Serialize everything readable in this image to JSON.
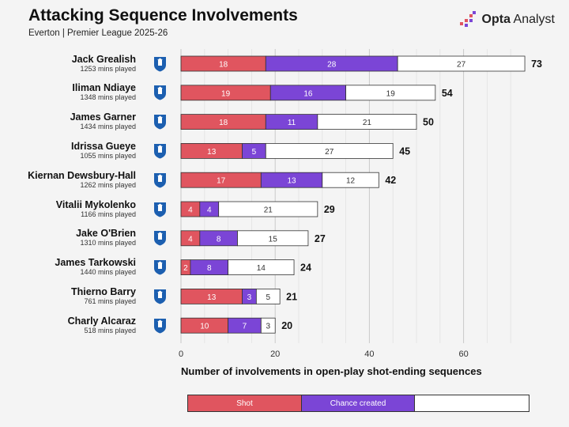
{
  "header": {
    "title": "Attacking Sequence Involvements",
    "subtitle": "Everton | Premier League 2025-26",
    "brand_bold": "Opta",
    "brand_regular": " Analyst"
  },
  "legend": {
    "shot": "Shot",
    "chance": "Chance created",
    "other": ""
  },
  "colors": {
    "shot": "#e0555f",
    "chance": "#7b45d6",
    "other": "#ffffff",
    "crest": "#1c5fb0"
  },
  "chart_data": {
    "type": "bar",
    "orientation": "horizontal",
    "stacked": true,
    "title": "Attacking Sequence Involvements",
    "xlabel": "Number of involvements in open-play shot-ending sequences",
    "xlim": [
      0,
      73
    ],
    "xticks": [
      0,
      20,
      40,
      60
    ],
    "grid": true,
    "categories": [
      "Jack Grealish",
      "Iliman Ndiaye",
      "James Garner",
      "Idrissa Gueye",
      "Kiernan Dewsbury-Hall",
      "Vitalii Mykolenko",
      "Jake O'Brien",
      "James Tarkowski",
      "Thierno Barry",
      "Charly Alcaraz"
    ],
    "minutes": [
      "1253 mins played",
      "1348 mins played",
      "1434 mins played",
      "1055 mins played",
      "1262 mins played",
      "1166 mins played",
      "1310 mins played",
      "1440 mins played",
      "761 mins played",
      "518 mins played"
    ],
    "series": [
      {
        "name": "Shot",
        "values": [
          18,
          19,
          18,
          13,
          17,
          4,
          4,
          2,
          13,
          10
        ]
      },
      {
        "name": "Chance created",
        "values": [
          28,
          16,
          11,
          5,
          13,
          4,
          8,
          8,
          3,
          7
        ]
      },
      {
        "values": [
          27,
          19,
          21,
          27,
          12,
          21,
          15,
          14,
          5,
          3
        ]
      }
    ],
    "totals": [
      73,
      54,
      50,
      45,
      42,
      29,
      27,
      24,
      21,
      20
    ]
  }
}
